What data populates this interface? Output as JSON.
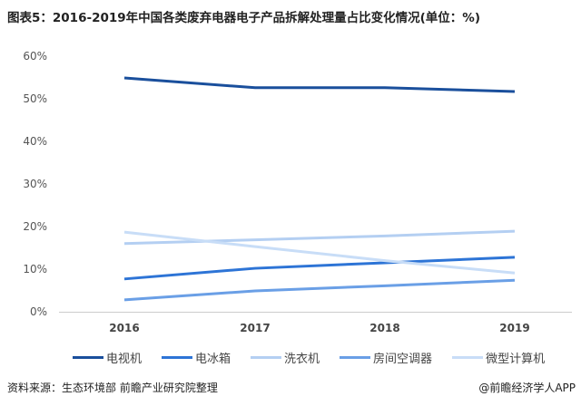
{
  "chart_data": {
    "type": "line",
    "title": "图表5：2016-2019年中国各类废弃电器电子产品拆解处理量占比变化情况(单位：%)",
    "categories": [
      "2016",
      "2017",
      "2018",
      "2019"
    ],
    "yticks": [
      "0%",
      "10%",
      "20%",
      "30%",
      "40%",
      "50%",
      "60%"
    ],
    "ylim": [
      0,
      60
    ],
    "grid": false,
    "legend": "bottom",
    "series": [
      {
        "name": "电视机",
        "values": [
          54.9,
          52.6,
          52.6,
          51.7
        ],
        "color": "#1a4f9c"
      },
      {
        "name": "电冰箱",
        "values": [
          7.7,
          10.2,
          11.5,
          12.8
        ],
        "color": "#2d74d6"
      },
      {
        "name": "洗衣机",
        "values": [
          16.0,
          16.9,
          17.8,
          18.9
        ],
        "color": "#b4cff2"
      },
      {
        "name": "房间空调器",
        "values": [
          2.8,
          4.9,
          6.1,
          7.4
        ],
        "color": "#6a9fe6"
      },
      {
        "name": "微型计算机",
        "values": [
          18.7,
          15.3,
          12.0,
          9.1
        ],
        "color": "#c8ddf7"
      }
    ]
  },
  "footer": {
    "source": "资料来源：生态环境部 前瞻产业研究院整理",
    "credit": "@前瞻经济学人APP"
  }
}
